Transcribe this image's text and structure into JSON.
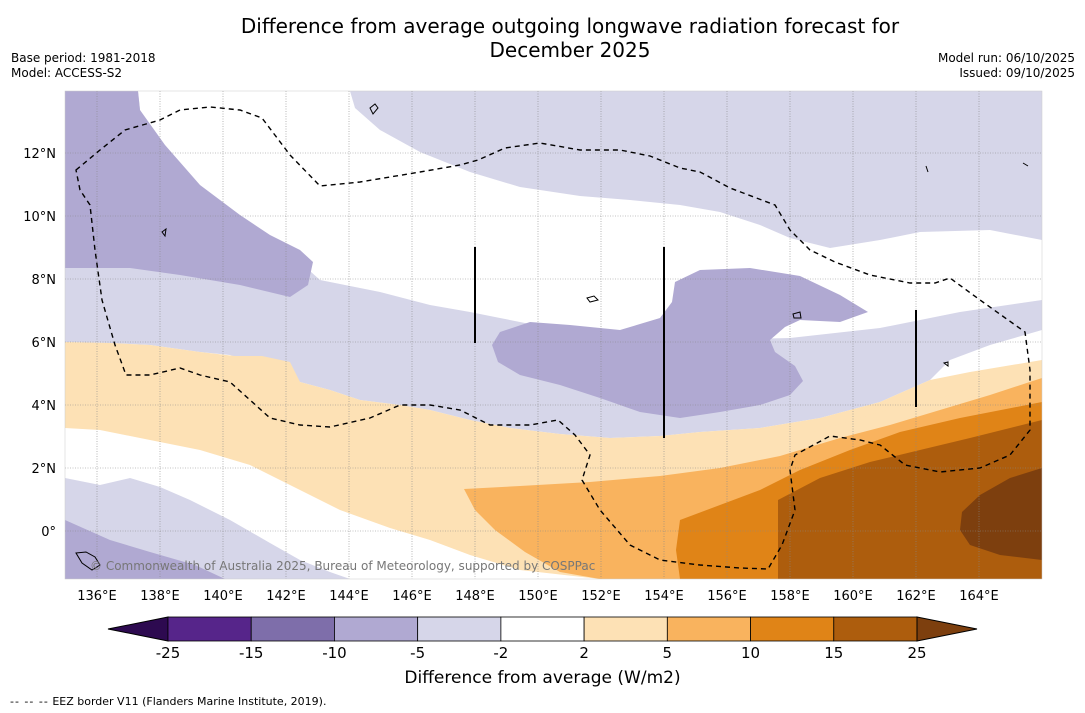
{
  "title": {
    "line1": "Difference from average outgoing longwave radiation forecast for",
    "line2": "December 2025"
  },
  "meta": {
    "base_period": "Base period: 1981-2018",
    "model": "Model: ACCESS-S2",
    "model_run": "Model run: 06/10/2025",
    "issued": "Issued: 09/10/2025"
  },
  "copyright": "© Commonwealth of Australia 2025, Bureau of Meteorology, supported by COSPPac",
  "axes": {
    "lon_labels": [
      "136°E",
      "138°E",
      "140°E",
      "142°E",
      "144°E",
      "146°E",
      "148°E",
      "150°E",
      "152°E",
      "154°E",
      "156°E",
      "158°E",
      "160°E",
      "162°E",
      "164°E"
    ],
    "lon_values": [
      136,
      138,
      140,
      142,
      144,
      146,
      148,
      150,
      152,
      154,
      156,
      158,
      160,
      162,
      164
    ],
    "lat_labels": [
      "12°N",
      "10°N",
      "8°N",
      "6°N",
      "4°N",
      "2°N",
      "0°"
    ],
    "lat_values": [
      12,
      10,
      8,
      6,
      4,
      2,
      0
    ],
    "lon_range": [
      135,
      166
    ],
    "lat_range": [
      -1.5,
      14
    ]
  },
  "colorbar": {
    "title": "Difference from average (W/m2)",
    "tick_labels": [
      "-25",
      "-15",
      "-10",
      "-5",
      "-2",
      "2",
      "5",
      "10",
      "15",
      "25"
    ],
    "colors": [
      "#56258a",
      "#7e6eaa",
      "#b0a9d2",
      "#d6d6e9",
      "#ffffff",
      "#fde1b5",
      "#f9b35e",
      "#e08417",
      "#ad5d0d"
    ],
    "under_color": "#2d0a50",
    "over_color": "#7d3f0e"
  },
  "colors": {
    "neg5": "#d6d6e9",
    "neg10": "#b0a9d2",
    "pos2": "#fde1b5",
    "pos5": "#f9b35e",
    "pos10": "#e08417",
    "pos15": "#ad5d0d",
    "pos25": "#7d3f0e"
  },
  "footnote": {
    "dashes": "--  --  --",
    "text": "EEZ border V11 (Flanders Marine Institute, 2019)."
  }
}
